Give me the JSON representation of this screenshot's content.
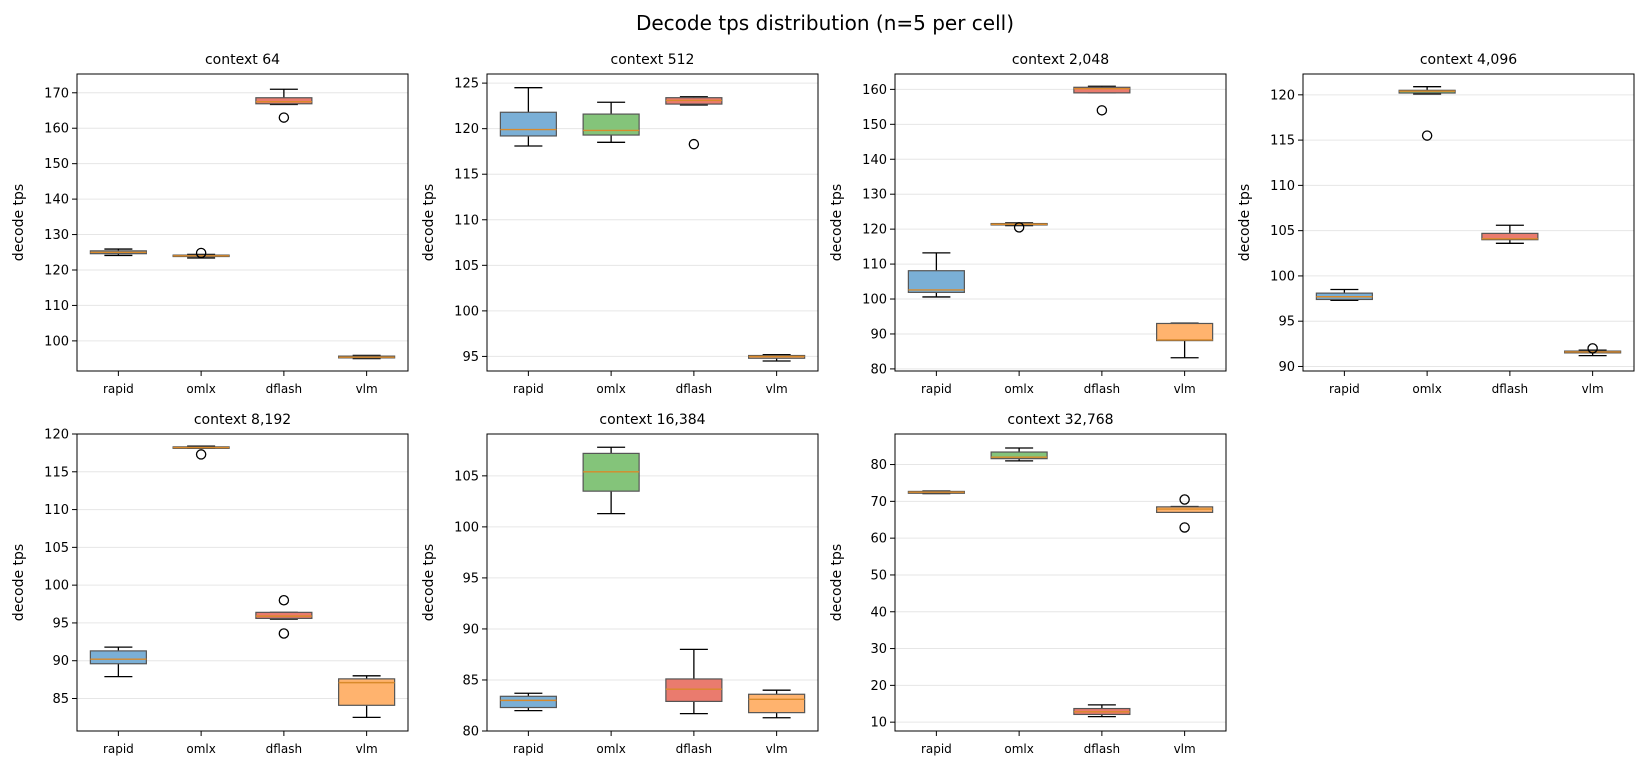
{
  "figure_title": "Decode tps distribution (n=5 per cell)",
  "colors": {
    "rapid": "#7aafd6",
    "omlx": "#84c47a",
    "dflash": "#ea7b6e",
    "vlm": "#ffb36e",
    "median": "#d98a2b",
    "edge": "#555555",
    "grid": "#e6e6e6"
  },
  "chart_data": [
    {
      "type": "box",
      "title": "context 64",
      "ylabel": "decode tps",
      "categories": [
        "rapid",
        "omlx",
        "dflash",
        "vlm"
      ],
      "ylim": [
        91.5,
        175.3
      ],
      "yticks": [
        100,
        110,
        120,
        130,
        140,
        150,
        160,
        170
      ],
      "boxes": [
        {
          "name": "rapid",
          "whislo": 124.1,
          "q1": 124.6,
          "med": 125.0,
          "q3": 125.4,
          "whishi": 125.9,
          "fliers": []
        },
        {
          "name": "omlx",
          "whislo": 123.4,
          "q1": 123.8,
          "med": 124.0,
          "q3": 124.2,
          "whishi": 124.4,
          "fliers": [
            124.8
          ]
        },
        {
          "name": "dflash",
          "whislo": 166.7,
          "q1": 166.9,
          "med": 167.5,
          "q3": 168.6,
          "whishi": 171.0,
          "fliers": [
            163.0
          ]
        },
        {
          "name": "vlm",
          "whislo": 95.0,
          "q1": 95.2,
          "med": 95.4,
          "q3": 95.7,
          "whishi": 95.9,
          "fliers": []
        }
      ]
    },
    {
      "type": "box",
      "title": "context 512",
      "ylabel": "decode tps",
      "categories": [
        "rapid",
        "omlx",
        "dflash",
        "vlm"
      ],
      "ylim": [
        93.4,
        126.0
      ],
      "yticks": [
        95,
        100,
        105,
        110,
        115,
        120,
        125
      ],
      "boxes": [
        {
          "name": "rapid",
          "whislo": 118.1,
          "q1": 119.2,
          "med": 119.9,
          "q3": 121.8,
          "whishi": 124.5,
          "fliers": []
        },
        {
          "name": "omlx",
          "whislo": 118.5,
          "q1": 119.3,
          "med": 119.8,
          "q3": 121.6,
          "whishi": 122.9,
          "fliers": []
        },
        {
          "name": "dflash",
          "whislo": 122.6,
          "q1": 122.7,
          "med": 123.1,
          "q3": 123.4,
          "whishi": 123.5,
          "fliers": [
            118.3
          ]
        },
        {
          "name": "vlm",
          "whislo": 94.5,
          "q1": 94.8,
          "med": 95.0,
          "q3": 95.1,
          "whishi": 95.2,
          "fliers": []
        }
      ]
    },
    {
      "type": "box",
      "title": "context 2,048",
      "ylabel": "decode tps",
      "categories": [
        "rapid",
        "omlx",
        "dflash",
        "vlm"
      ],
      "ylim": [
        79.4,
        164.4
      ],
      "yticks": [
        80,
        90,
        100,
        110,
        120,
        130,
        140,
        150,
        160
      ],
      "boxes": [
        {
          "name": "rapid",
          "whislo": 100.6,
          "q1": 101.9,
          "med": 102.6,
          "q3": 108.1,
          "whishi": 113.2,
          "fliers": []
        },
        {
          "name": "omlx",
          "whislo": 121.0,
          "q1": 121.2,
          "med": 121.4,
          "q3": 121.6,
          "whishi": 121.8,
          "fliers": [
            120.5
          ]
        },
        {
          "name": "dflash",
          "whislo": 159.0,
          "q1": 159.0,
          "med": 160.2,
          "q3": 160.6,
          "whishi": 160.9,
          "fliers": [
            154.0
          ]
        },
        {
          "name": "vlm",
          "whislo": 83.2,
          "q1": 88.1,
          "med": 88.3,
          "q3": 93.0,
          "whishi": 93.1,
          "fliers": []
        }
      ]
    },
    {
      "type": "box",
      "title": "context 4,096",
      "ylabel": "decode tps",
      "categories": [
        "rapid",
        "omlx",
        "dflash",
        "vlm"
      ],
      "ylim": [
        89.5,
        122.3
      ],
      "yticks": [
        90,
        95,
        100,
        105,
        110,
        115,
        120
      ],
      "boxes": [
        {
          "name": "rapid",
          "whislo": 97.3,
          "q1": 97.4,
          "med": 97.7,
          "q3": 98.1,
          "whishi": 98.5,
          "fliers": []
        },
        {
          "name": "omlx",
          "whislo": 120.1,
          "q1": 120.2,
          "med": 120.4,
          "q3": 120.5,
          "whishi": 120.9,
          "fliers": [
            115.5
          ]
        },
        {
          "name": "dflash",
          "whislo": 103.6,
          "q1": 104.0,
          "med": 104.1,
          "q3": 104.7,
          "whishi": 105.6,
          "fliers": []
        },
        {
          "name": "vlm",
          "whislo": 91.2,
          "q1": 91.5,
          "med": 91.6,
          "q3": 91.7,
          "whishi": 91.8,
          "fliers": [
            92.0
          ]
        }
      ]
    },
    {
      "type": "box",
      "title": "context 8,192",
      "ylabel": "decode tps",
      "categories": [
        "rapid",
        "omlx",
        "dflash",
        "vlm"
      ],
      "ylim": [
        80.7,
        120.0
      ],
      "yticks": [
        85,
        90,
        95,
        100,
        105,
        110,
        115,
        120
      ],
      "boxes": [
        {
          "name": "rapid",
          "whislo": 87.9,
          "q1": 89.6,
          "med": 90.2,
          "q3": 91.3,
          "whishi": 91.8,
          "fliers": []
        },
        {
          "name": "omlx",
          "whislo": 118.1,
          "q1": 118.1,
          "med": 118.2,
          "q3": 118.3,
          "whishi": 118.4,
          "fliers": [
            117.3
          ]
        },
        {
          "name": "dflash",
          "whislo": 95.5,
          "q1": 95.6,
          "med": 95.9,
          "q3": 96.4,
          "whishi": 96.4,
          "fliers": [
            98.0,
            93.6
          ]
        },
        {
          "name": "vlm",
          "whislo": 82.5,
          "q1": 84.1,
          "med": 87.1,
          "q3": 87.6,
          "whishi": 88.0,
          "fliers": []
        }
      ]
    },
    {
      "type": "box",
      "title": "context 16,384",
      "ylabel": "decode tps",
      "categories": [
        "rapid",
        "omlx",
        "dflash",
        "vlm"
      ],
      "ylim": [
        80.0,
        109.1
      ],
      "yticks": [
        80,
        85,
        90,
        95,
        100,
        105
      ],
      "boxes": [
        {
          "name": "rapid",
          "whislo": 82.0,
          "q1": 82.3,
          "med": 83.0,
          "q3": 83.4,
          "whishi": 83.7,
          "fliers": []
        },
        {
          "name": "omlx",
          "whislo": 101.3,
          "q1": 103.5,
          "med": 105.4,
          "q3": 107.2,
          "whishi": 107.8,
          "fliers": []
        },
        {
          "name": "dflash",
          "whislo": 81.7,
          "q1": 82.9,
          "med": 84.1,
          "q3": 85.1,
          "whishi": 88.0,
          "fliers": []
        },
        {
          "name": "vlm",
          "whislo": 81.3,
          "q1": 81.8,
          "med": 83.1,
          "q3": 83.6,
          "whishi": 84.0,
          "fliers": []
        }
      ]
    },
    {
      "type": "box",
      "title": "context 32,768",
      "ylabel": "decode tps",
      "categories": [
        "rapid",
        "omlx",
        "dflash",
        "vlm"
      ],
      "ylim": [
        7.6,
        88.3
      ],
      "yticks": [
        10,
        20,
        30,
        40,
        50,
        60,
        70,
        80
      ],
      "boxes": [
        {
          "name": "rapid",
          "whislo": 72.1,
          "q1": 72.2,
          "med": 72.5,
          "q3": 72.7,
          "whishi": 72.8,
          "fliers": []
        },
        {
          "name": "omlx",
          "whislo": 81.0,
          "q1": 81.6,
          "med": 82.0,
          "q3": 83.4,
          "whishi": 84.5,
          "fliers": []
        },
        {
          "name": "dflash",
          "whislo": 11.5,
          "q1": 12.1,
          "med": 12.8,
          "q3": 13.7,
          "whishi": 14.7,
          "fliers": []
        },
        {
          "name": "vlm",
          "whislo": 67.0,
          "q1": 67.0,
          "med": 67.9,
          "q3": 68.5,
          "whishi": 68.6,
          "fliers": [
            70.5,
            62.9
          ]
        }
      ]
    }
  ]
}
